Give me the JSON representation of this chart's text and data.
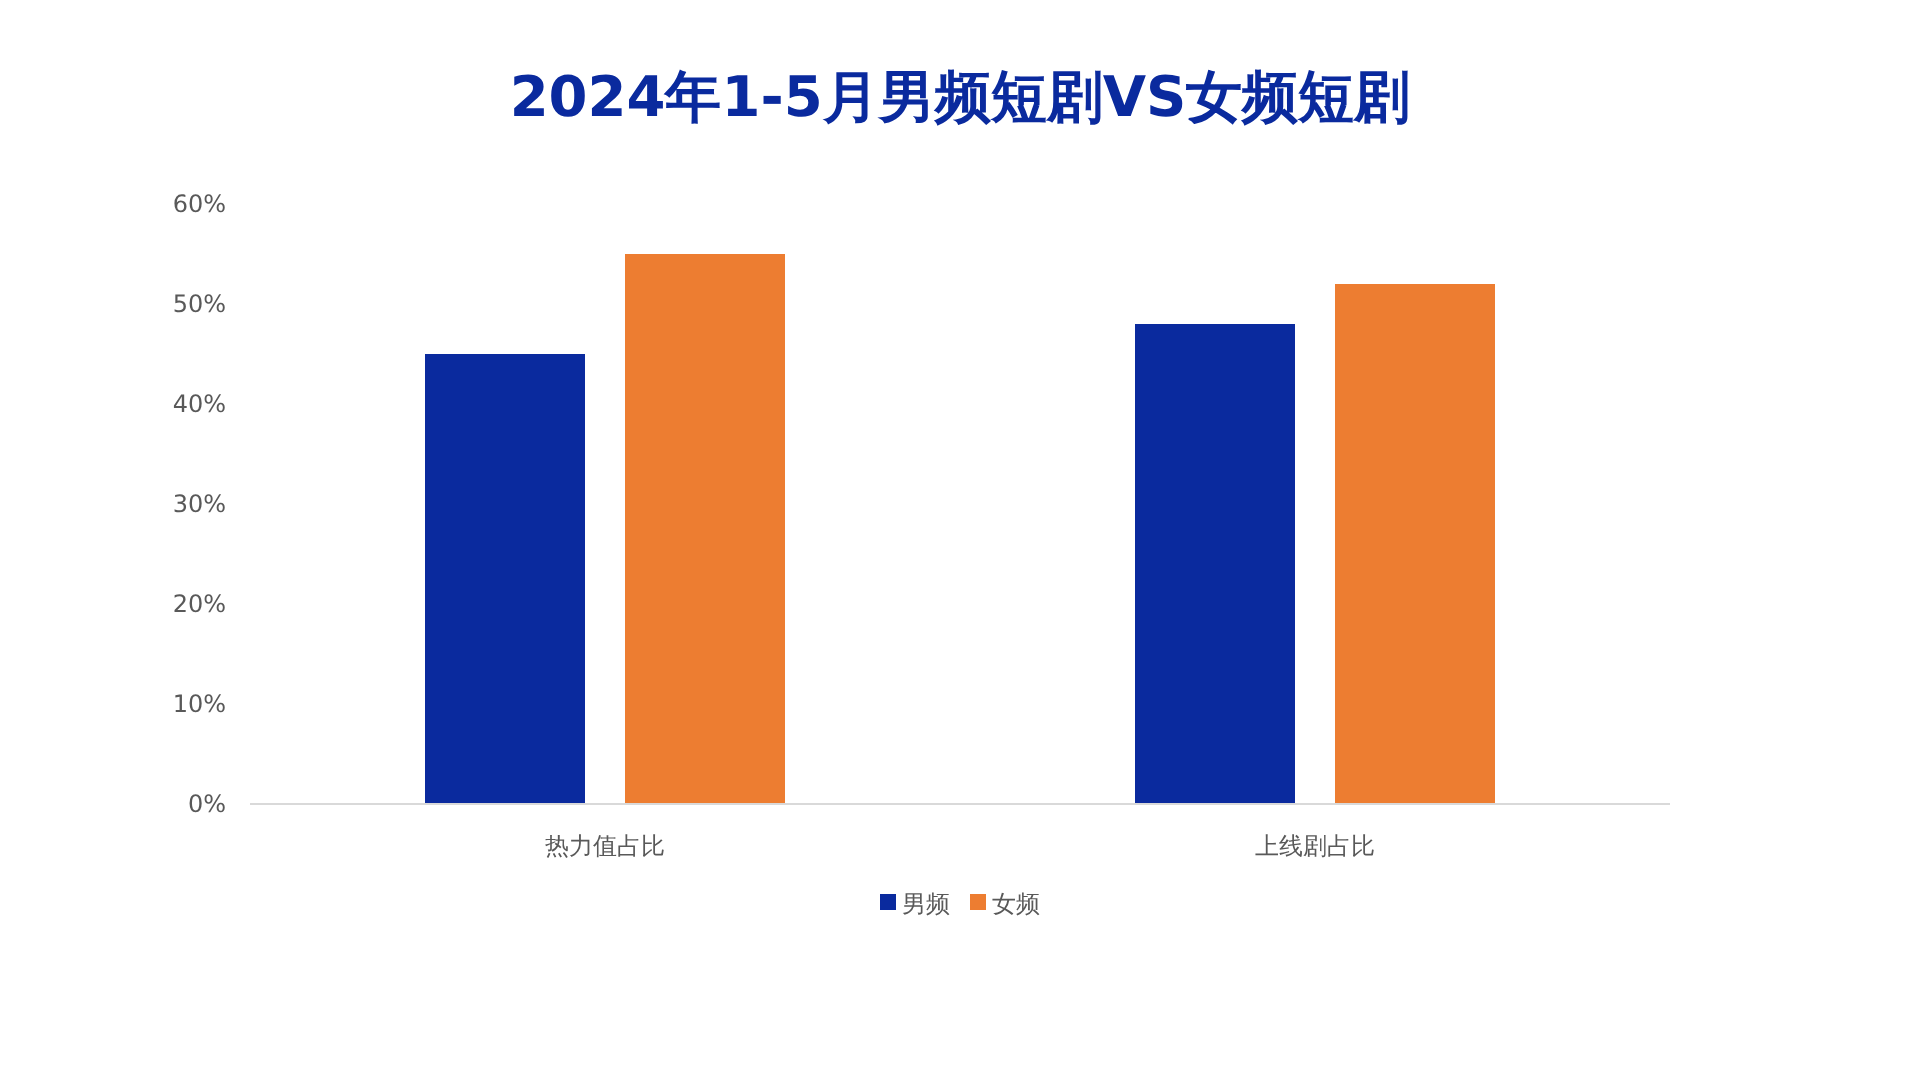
{
  "chart_data": {
    "type": "bar",
    "title": "2024年1-5月男频短剧VS女频短剧",
    "categories": [
      "热力值占比",
      "上线剧占比"
    ],
    "series": [
      {
        "name": "男频",
        "color": "#0a2a9e",
        "values": [
          45,
          48
        ]
      },
      {
        "name": "女频",
        "color": "#ed7d31",
        "values": [
          55,
          52
        ]
      }
    ],
    "ylim": [
      0,
      60
    ],
    "yticks": [
      {
        "value": 0,
        "label": "0%"
      },
      {
        "value": 10,
        "label": "10%"
      },
      {
        "value": 20,
        "label": "20%"
      },
      {
        "value": 30,
        "label": "30%"
      },
      {
        "value": 40,
        "label": "40%"
      },
      {
        "value": 50,
        "label": "50%"
      },
      {
        "value": 60,
        "label": "60%"
      }
    ],
    "legend": "bottom"
  }
}
